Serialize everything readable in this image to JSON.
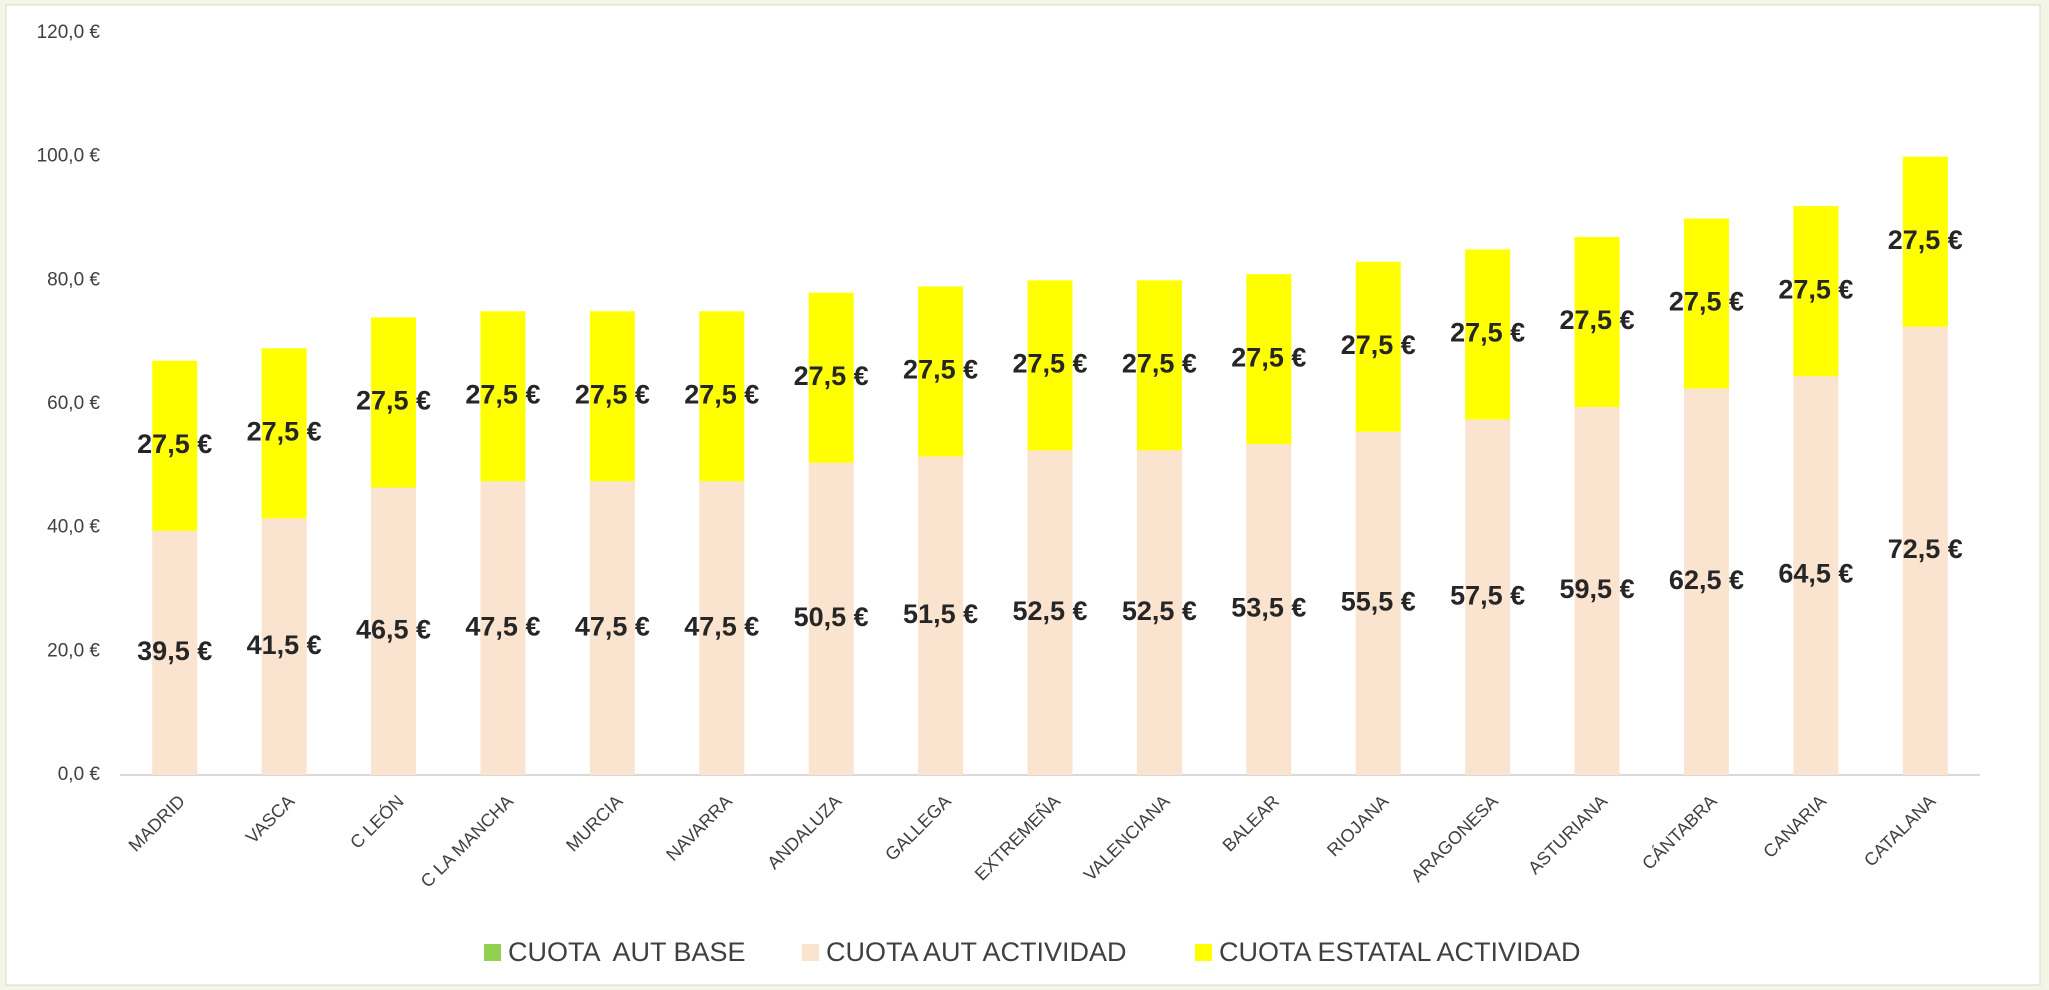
{
  "chart_data": {
    "type": "stacked_bar",
    "categories": [
      "MADRID",
      "VASCA",
      "C LEÓN",
      "C LA MANCHA",
      "MURCIA",
      "NAVARRA",
      "ANDALUZA",
      "GALLEGA",
      "EXTREMEÑA",
      "VALENCIANA",
      "BALEAR",
      "RIOJANA",
      "ARAGONESA",
      "ASTURIANA",
      "CÁNTABRA",
      "CANARIA",
      "CATALANA"
    ],
    "series": [
      {
        "name": "CUOTA  AUT BASE",
        "color": "#92d050",
        "values": [
          0,
          0,
          0,
          0,
          0,
          0,
          0,
          0,
          0,
          0,
          0,
          0,
          0,
          0,
          0,
          0,
          0
        ]
      },
      {
        "name": "CUOTA AUT ACTIVIDAD",
        "color": "#fae3cf",
        "values": [
          39.5,
          41.5,
          46.5,
          47.5,
          47.5,
          47.5,
          50.5,
          51.5,
          52.5,
          52.5,
          53.5,
          55.5,
          57.5,
          59.5,
          62.5,
          64.5,
          72.5
        ],
        "value_labels": [
          "39,5 €",
          "41,5 €",
          "46,5 €",
          "47,5 €",
          "47,5 €",
          "47,5 €",
          "50,5 €",
          "51,5 €",
          "52,5 €",
          "52,5 €",
          "53,5 €",
          "55,5 €",
          "57,5 €",
          "59,5 €",
          "62,5 €",
          "64,5 €",
          "72,5 €"
        ]
      },
      {
        "name": "CUOTA ESTATAL ACTIVIDAD",
        "color": "#ffff00",
        "values": [
          27.5,
          27.5,
          27.5,
          27.5,
          27.5,
          27.5,
          27.5,
          27.5,
          27.5,
          27.5,
          27.5,
          27.5,
          27.5,
          27.5,
          27.5,
          27.5,
          27.5
        ],
        "value_labels": [
          "27,5 €",
          "27,5 €",
          "27,5 €",
          "27,5 €",
          "27,5 €",
          "27,5 €",
          "27,5 €",
          "27,5 €",
          "27,5 €",
          "27,5 €",
          "27,5 €",
          "27,5 €",
          "27,5 €",
          "27,5 €",
          "27,5 €",
          "27,5 €",
          "27,5 €"
        ]
      }
    ],
    "ylim": [
      0,
      120
    ],
    "yticks": [
      {
        "value": 0,
        "label": "0,0 €"
      },
      {
        "value": 20,
        "label": "20,0 €"
      },
      {
        "value": 40,
        "label": "40,0 €"
      },
      {
        "value": 60,
        "label": "60,0 €"
      },
      {
        "value": 80,
        "label": "80,0 €"
      },
      {
        "value": 100,
        "label": "100,0 €"
      },
      {
        "value": 120,
        "label": "120,0 €"
      }
    ],
    "legend": "bottom"
  }
}
